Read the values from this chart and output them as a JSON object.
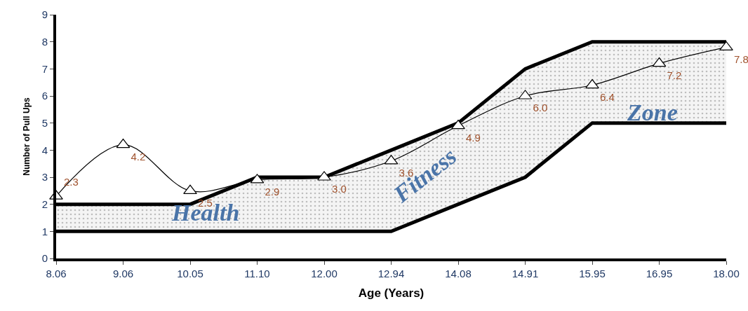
{
  "chart_data": {
    "type": "line",
    "xlabel": "Age (Years)",
    "ylabel": "Number of Pull Ups",
    "categories": [
      "8.06",
      "9.06",
      "10.05",
      "11.10",
      "12.00",
      "12.94",
      "14.08",
      "14.91",
      "15.95",
      "16.95",
      "18.00"
    ],
    "series": [
      {
        "type": "line",
        "color": "#000000",
        "values": [
          1,
          1,
          1,
          1,
          1,
          1,
          2,
          3,
          5,
          5,
          5
        ]
      },
      {
        "type": "area",
        "color": "#000000",
        "values": [
          2,
          2,
          2,
          3,
          3,
          4,
          5,
          7,
          8,
          8,
          8
        ]
      },
      {
        "color": "#000000",
        "marker": "triangle",
        "values": [
          2.3,
          4.2,
          2.5,
          2.9,
          3.0,
          3.6,
          4.9,
          6.0,
          6.4,
          7.2,
          7.8
        ],
        "value_labels": [
          "2.3",
          "4.2",
          "2.5",
          "2.9",
          "3.0",
          "3.6",
          "4.9",
          "6.0",
          "6.4",
          "7.2",
          "7.8"
        ]
      }
    ],
    "annotations": [
      "Health",
      "Fitness",
      "Zone"
    ],
    "ylim": [
      0,
      9
    ],
    "yticks": [
      0,
      1,
      2,
      3,
      4,
      5,
      6,
      7,
      8,
      9
    ],
    "grid": false
  }
}
